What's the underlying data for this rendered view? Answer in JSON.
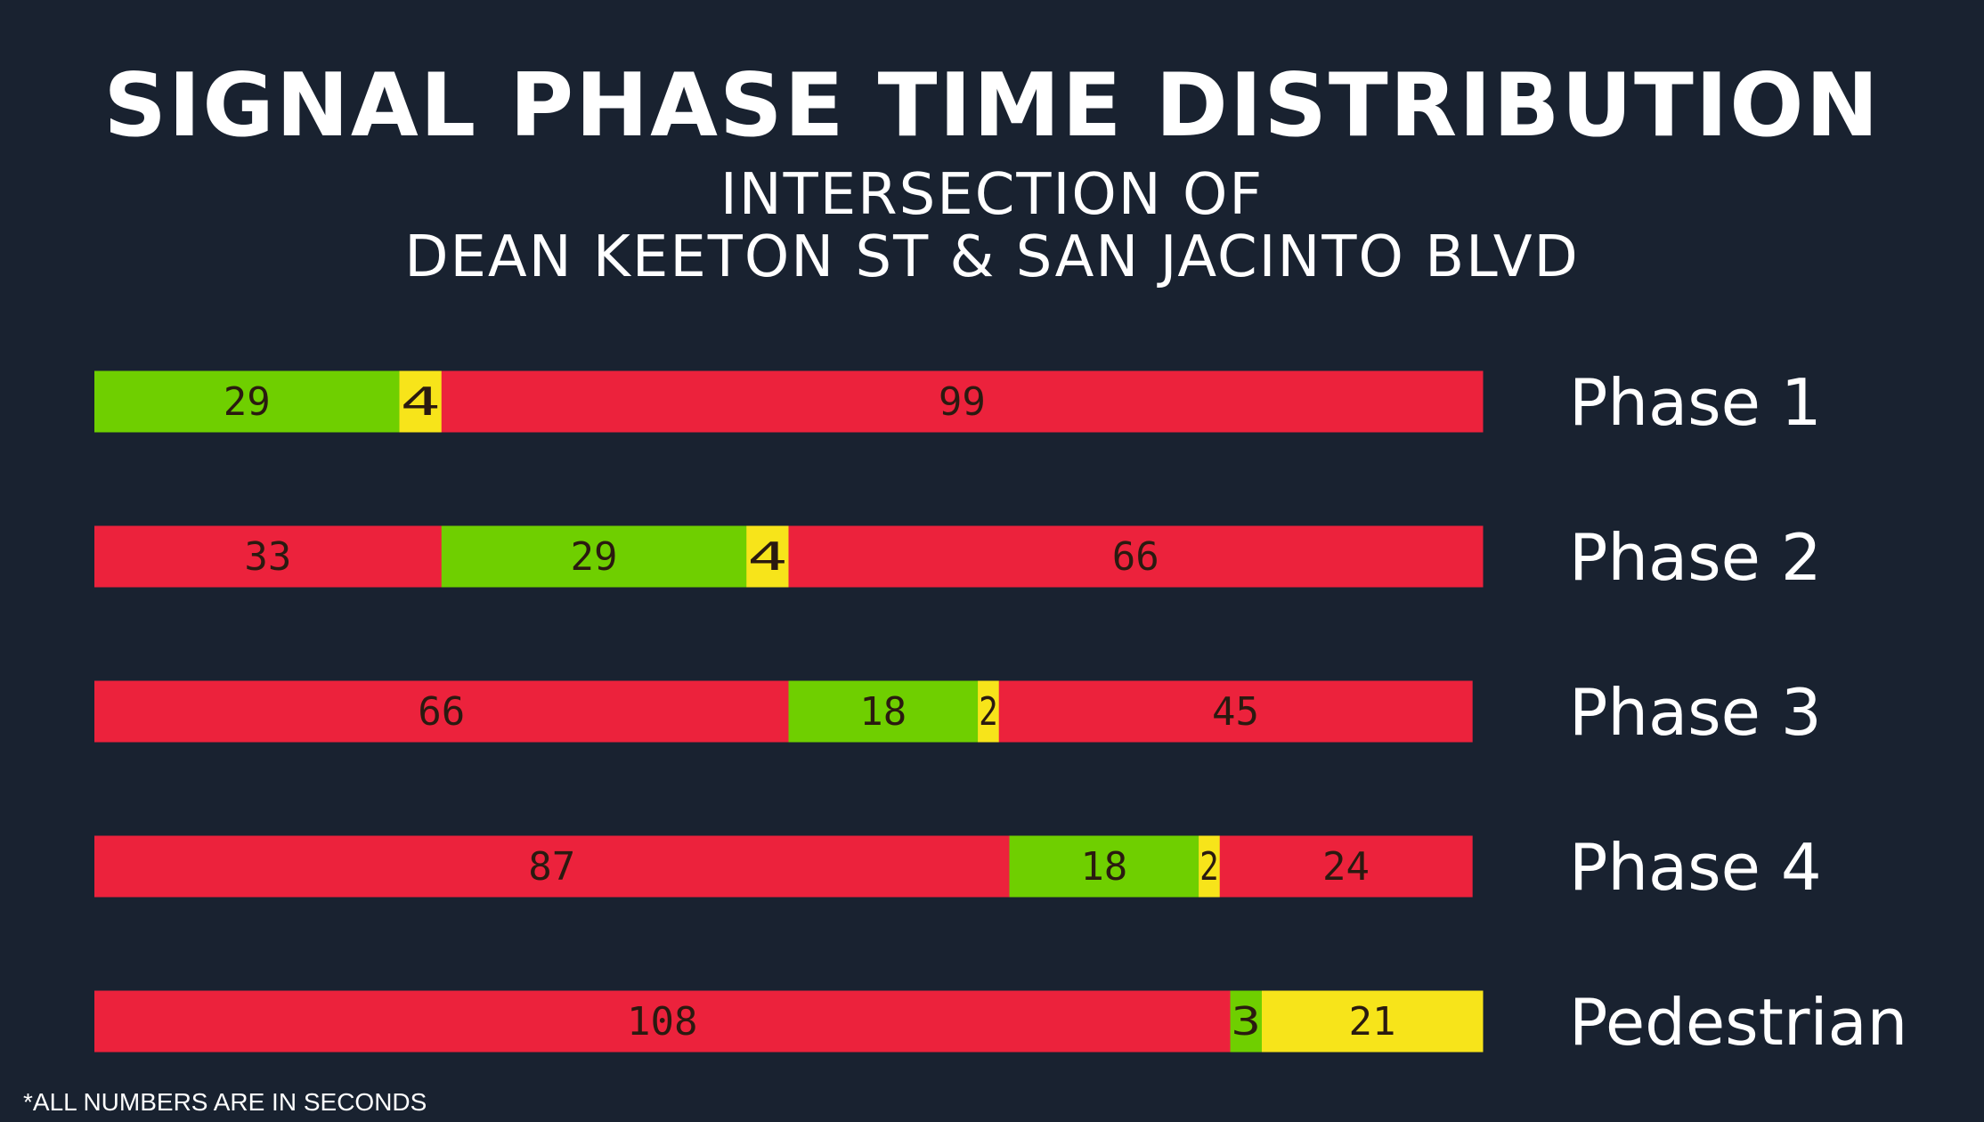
{
  "title": "SIGNAL PHASE TIME DISTRIBUTION",
  "subtitle_line1": "INTERSECTION OF",
  "subtitle_line2": "DEAN KEETON ST & SAN JACINTO BLVD",
  "footnote": "*ALL NUMBERS ARE IN SECONDS",
  "colors": {
    "background": "#192230",
    "red": "#ec223c",
    "green": "#6fcf00",
    "yellow": "#f7e41a"
  },
  "chart_data": {
    "type": "bar",
    "orientation": "horizontal",
    "stacked": true,
    "xlim": [
      0,
      132
    ],
    "grid": false,
    "rows": [
      {
        "label": "Phase 1",
        "segments": [
          {
            "color": "green",
            "value": 29
          },
          {
            "color": "yellow",
            "value": 4
          },
          {
            "color": "red",
            "value": 99
          }
        ]
      },
      {
        "label": "Phase 2",
        "segments": [
          {
            "color": "red",
            "value": 33
          },
          {
            "color": "green",
            "value": 29
          },
          {
            "color": "yellow",
            "value": 4
          },
          {
            "color": "red",
            "value": 66
          }
        ]
      },
      {
        "label": "Phase 3",
        "segments": [
          {
            "color": "red",
            "value": 66
          },
          {
            "color": "green",
            "value": 18
          },
          {
            "color": "yellow",
            "value": 2
          },
          {
            "color": "red",
            "value": 45
          }
        ]
      },
      {
        "label": "Phase 4",
        "segments": [
          {
            "color": "red",
            "value": 87
          },
          {
            "color": "green",
            "value": 18
          },
          {
            "color": "yellow",
            "value": 2
          },
          {
            "color": "red",
            "value": 24
          }
        ]
      },
      {
        "label": "Pedestrian",
        "segments": [
          {
            "color": "red",
            "value": 108
          },
          {
            "color": "green",
            "value": 3
          },
          {
            "color": "yellow",
            "value": 21
          }
        ]
      }
    ]
  }
}
